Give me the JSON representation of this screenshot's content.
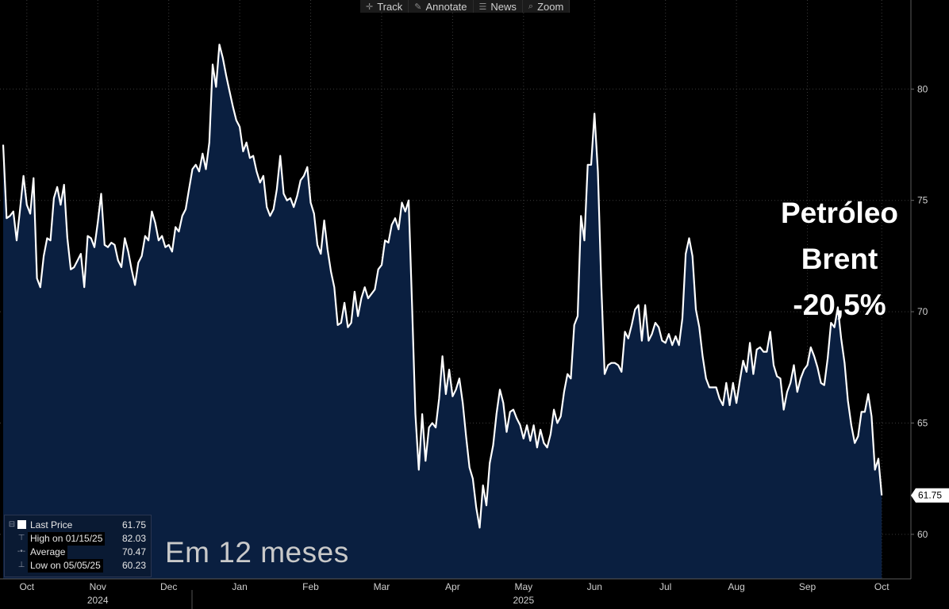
{
  "toolbar": {
    "items": [
      {
        "label": "Track",
        "icon": "crosshair-icon"
      },
      {
        "label": "Annotate",
        "icon": "pencil-icon"
      },
      {
        "label": "News",
        "icon": "news-icon"
      },
      {
        "label": "Zoom",
        "icon": "magnifier-icon"
      }
    ]
  },
  "legend": {
    "last_price": {
      "label": "Last Price",
      "value": "61.75"
    },
    "high": {
      "label": "High on 01/15/25",
      "value": "82.03"
    },
    "average": {
      "label": "Average",
      "value": "70.47"
    },
    "low": {
      "label": "Low on 05/05/25",
      "value": "60.23"
    }
  },
  "annotation": {
    "line1": "Petróleo",
    "line2": "Brent",
    "line3": "-20,5%"
  },
  "subtitle": "Em 12 meses",
  "colors": {
    "background": "#000000",
    "fill": "#0a1f40",
    "line": "#ffffff",
    "grid": "#3a3a3a"
  },
  "chart_data": {
    "type": "area",
    "ylim": [
      58,
      84
    ],
    "xlim": [
      0,
      263
    ],
    "yticks": [
      60,
      65,
      70,
      75,
      80
    ],
    "last_value_label": "61.75",
    "grid": true,
    "x_month_labels": [
      {
        "label": "Oct",
        "at": 7
      },
      {
        "label": "Nov",
        "at": 28
      },
      {
        "label": "Dec",
        "at": 49
      },
      {
        "label": "Jan",
        "at": 70
      },
      {
        "label": "Feb",
        "at": 91
      },
      {
        "label": "Mar",
        "at": 112
      },
      {
        "label": "Apr",
        "at": 133
      },
      {
        "label": "May",
        "at": 154
      },
      {
        "label": "Jun",
        "at": 175
      },
      {
        "label": "Jul",
        "at": 196
      },
      {
        "label": "Aug",
        "at": 217
      },
      {
        "label": "Sep",
        "at": 238
      },
      {
        "label": "Oct",
        "at": 260
      }
    ],
    "x_year_labels": [
      {
        "label": "2024",
        "at": 28
      },
      {
        "label": "2025",
        "at": 154
      }
    ],
    "points": [
      [
        0,
        77.5
      ],
      [
        1,
        74.2
      ],
      [
        2,
        74.3
      ],
      [
        3,
        74.5
      ],
      [
        4,
        73.2
      ],
      [
        5,
        74.6
      ],
      [
        6,
        76.1
      ],
      [
        7,
        74.8
      ],
      [
        8,
        74.4
      ],
      [
        9,
        76.0
      ],
      [
        10,
        71.5
      ],
      [
        11,
        71.1
      ],
      [
        12,
        72.5
      ],
      [
        13,
        73.3
      ],
      [
        14,
        73.2
      ],
      [
        15,
        75.1
      ],
      [
        16,
        75.6
      ],
      [
        17,
        74.8
      ],
      [
        18,
        75.7
      ],
      [
        19,
        73.3
      ],
      [
        20,
        71.9
      ],
      [
        21,
        72.0
      ],
      [
        22,
        72.3
      ],
      [
        23,
        72.6
      ],
      [
        24,
        71.1
      ],
      [
        25,
        73.4
      ],
      [
        26,
        73.3
      ],
      [
        27,
        72.9
      ],
      [
        28,
        74.0
      ],
      [
        29,
        75.3
      ],
      [
        30,
        73.0
      ],
      [
        31,
        72.9
      ],
      [
        32,
        73.1
      ],
      [
        33,
        73.0
      ],
      [
        34,
        72.3
      ],
      [
        35,
        72.0
      ],
      [
        36,
        73.3
      ],
      [
        37,
        72.7
      ],
      [
        38,
        71.9
      ],
      [
        39,
        71.2
      ],
      [
        40,
        72.2
      ],
      [
        41,
        72.5
      ],
      [
        42,
        73.4
      ],
      [
        43,
        73.2
      ],
      [
        44,
        74.5
      ],
      [
        45,
        74.0
      ],
      [
        46,
        73.2
      ],
      [
        47,
        73.4
      ],
      [
        48,
        72.9
      ],
      [
        49,
        73.0
      ],
      [
        50,
        72.7
      ],
      [
        51,
        73.8
      ],
      [
        52,
        73.6
      ],
      [
        53,
        74.3
      ],
      [
        54,
        74.6
      ],
      [
        55,
        75.5
      ],
      [
        56,
        76.4
      ],
      [
        57,
        76.6
      ],
      [
        58,
        76.3
      ],
      [
        59,
        77.1
      ],
      [
        60,
        76.4
      ],
      [
        61,
        77.6
      ],
      [
        62,
        81.1
      ],
      [
        63,
        80.1
      ],
      [
        64,
        82.0
      ],
      [
        65,
        81.4
      ],
      [
        66,
        80.6
      ],
      [
        67,
        79.9
      ],
      [
        68,
        79.2
      ],
      [
        69,
        78.6
      ],
      [
        70,
        78.3
      ],
      [
        71,
        77.2
      ],
      [
        72,
        77.6
      ],
      [
        73,
        76.9
      ],
      [
        74,
        77.0
      ],
      [
        75,
        76.3
      ],
      [
        76,
        75.8
      ],
      [
        77,
        76.1
      ],
      [
        78,
        74.7
      ],
      [
        79,
        74.3
      ],
      [
        80,
        74.6
      ],
      [
        81,
        75.5
      ],
      [
        82,
        77.0
      ],
      [
        83,
        75.3
      ],
      [
        84,
        75.0
      ],
      [
        85,
        75.1
      ],
      [
        86,
        74.7
      ],
      [
        87,
        75.2
      ],
      [
        88,
        75.9
      ],
      [
        89,
        76.1
      ],
      [
        90,
        76.5
      ],
      [
        91,
        74.9
      ],
      [
        92,
        74.4
      ],
      [
        93,
        73.0
      ],
      [
        94,
        72.6
      ],
      [
        95,
        74.1
      ],
      [
        96,
        72.8
      ],
      [
        97,
        71.8
      ],
      [
        98,
        71.1
      ],
      [
        99,
        69.4
      ],
      [
        100,
        69.5
      ],
      [
        101,
        70.4
      ],
      [
        102,
        69.3
      ],
      [
        103,
        69.5
      ],
      [
        104,
        70.9
      ],
      [
        105,
        69.8
      ],
      [
        106,
        70.6
      ],
      [
        107,
        71.1
      ],
      [
        108,
        70.6
      ],
      [
        109,
        70.8
      ],
      [
        110,
        71.0
      ],
      [
        111,
        71.9
      ],
      [
        112,
        72.1
      ],
      [
        113,
        73.2
      ],
      [
        114,
        73.1
      ],
      [
        115,
        73.9
      ],
      [
        116,
        74.2
      ],
      [
        117,
        73.7
      ],
      [
        118,
        74.9
      ],
      [
        119,
        74.5
      ],
      [
        120,
        75.0
      ],
      [
        121,
        70.3
      ],
      [
        122,
        65.4
      ],
      [
        123,
        62.9
      ],
      [
        124,
        65.4
      ],
      [
        125,
        63.3
      ],
      [
        126,
        64.8
      ],
      [
        127,
        65.0
      ],
      [
        128,
        64.8
      ],
      [
        129,
        66.1
      ],
      [
        130,
        68.0
      ],
      [
        131,
        66.3
      ],
      [
        132,
        67.4
      ],
      [
        133,
        66.2
      ],
      [
        134,
        66.5
      ],
      [
        135,
        67.0
      ],
      [
        136,
        65.9
      ],
      [
        137,
        64.4
      ],
      [
        138,
        63.0
      ],
      [
        139,
        62.5
      ],
      [
        140,
        61.2
      ],
      [
        141,
        60.3
      ],
      [
        142,
        62.2
      ],
      [
        143,
        61.3
      ],
      [
        144,
        63.2
      ],
      [
        145,
        64.0
      ],
      [
        146,
        65.4
      ],
      [
        147,
        66.5
      ],
      [
        148,
        65.9
      ],
      [
        149,
        64.6
      ],
      [
        150,
        65.5
      ],
      [
        151,
        65.6
      ],
      [
        152,
        65.2
      ],
      [
        153,
        64.9
      ],
      [
        154,
        64.3
      ],
      [
        155,
        64.9
      ],
      [
        156,
        64.2
      ],
      [
        157,
        64.9
      ],
      [
        158,
        63.9
      ],
      [
        159,
        64.7
      ],
      [
        160,
        64.1
      ],
      [
        161,
        63.9
      ],
      [
        162,
        64.5
      ],
      [
        163,
        65.6
      ],
      [
        164,
        65.0
      ],
      [
        165,
        65.3
      ],
      [
        166,
        66.4
      ],
      [
        167,
        67.2
      ],
      [
        168,
        67.0
      ],
      [
        169,
        69.4
      ],
      [
        170,
        69.8
      ],
      [
        171,
        74.3
      ],
      [
        172,
        73.2
      ],
      [
        173,
        76.6
      ],
      [
        174,
        76.6
      ],
      [
        175,
        78.9
      ],
      [
        176,
        76.3
      ],
      [
        177,
        71.2
      ],
      [
        178,
        67.2
      ],
      [
        179,
        67.6
      ],
      [
        180,
        67.7
      ],
      [
        181,
        67.7
      ],
      [
        182,
        67.6
      ],
      [
        183,
        67.3
      ],
      [
        184,
        69.1
      ],
      [
        185,
        68.8
      ],
      [
        186,
        69.4
      ],
      [
        187,
        70.1
      ],
      [
        188,
        70.3
      ],
      [
        189,
        68.7
      ],
      [
        190,
        70.3
      ],
      [
        191,
        68.7
      ],
      [
        192,
        69.0
      ],
      [
        193,
        69.5
      ],
      [
        194,
        69.3
      ],
      [
        195,
        68.7
      ],
      [
        196,
        68.6
      ],
      [
        197,
        69.0
      ],
      [
        198,
        68.5
      ],
      [
        199,
        68.9
      ],
      [
        200,
        68.5
      ],
      [
        201,
        69.7
      ],
      [
        202,
        72.6
      ],
      [
        203,
        73.3
      ],
      [
        204,
        72.5
      ],
      [
        205,
        70.1
      ],
      [
        206,
        69.3
      ],
      [
        207,
        68.0
      ],
      [
        208,
        67.0
      ],
      [
        209,
        66.6
      ],
      [
        210,
        66.6
      ],
      [
        211,
        66.6
      ],
      [
        212,
        66.1
      ],
      [
        213,
        65.8
      ],
      [
        214,
        66.8
      ],
      [
        215,
        65.8
      ],
      [
        216,
        66.8
      ],
      [
        217,
        65.9
      ],
      [
        218,
        66.9
      ],
      [
        219,
        67.8
      ],
      [
        220,
        67.3
      ],
      [
        221,
        68.6
      ],
      [
        222,
        67.2
      ],
      [
        223,
        68.3
      ],
      [
        224,
        68.4
      ],
      [
        225,
        68.2
      ],
      [
        226,
        68.2
      ],
      [
        227,
        69.1
      ],
      [
        228,
        67.6
      ],
      [
        229,
        67.1
      ],
      [
        230,
        67.0
      ],
      [
        231,
        65.6
      ],
      [
        232,
        66.4
      ],
      [
        233,
        66.8
      ],
      [
        234,
        67.6
      ],
      [
        235,
        66.4
      ],
      [
        236,
        67.0
      ],
      [
        237,
        67.4
      ],
      [
        238,
        67.6
      ],
      [
        239,
        68.4
      ],
      [
        240,
        68.0
      ],
      [
        241,
        67.5
      ],
      [
        242,
        66.8
      ],
      [
        243,
        66.7
      ],
      [
        244,
        67.9
      ],
      [
        245,
        69.5
      ],
      [
        246,
        69.3
      ],
      [
        247,
        70.2
      ],
      [
        248,
        68.8
      ],
      [
        249,
        67.7
      ],
      [
        250,
        66.0
      ],
      [
        251,
        64.9
      ],
      [
        252,
        64.1
      ],
      [
        253,
        64.4
      ],
      [
        254,
        65.5
      ],
      [
        255,
        65.5
      ],
      [
        256,
        66.3
      ],
      [
        257,
        65.3
      ],
      [
        258,
        62.9
      ],
      [
        259,
        63.4
      ],
      [
        260,
        61.75
      ]
    ]
  }
}
